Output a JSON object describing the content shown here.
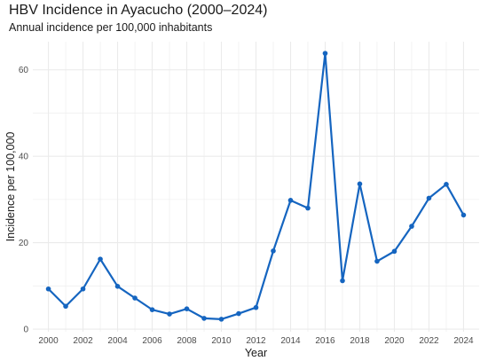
{
  "chart_data": {
    "type": "line",
    "title": "HBV Incidence in Ayacucho (2000–2024)",
    "subtitle": "Annual incidence per 100,000 inhabitants",
    "xlabel": "Year",
    "ylabel": "Incidence per 100,000",
    "x": [
      2000,
      2001,
      2002,
      2003,
      2004,
      2005,
      2006,
      2007,
      2008,
      2009,
      2010,
      2011,
      2012,
      2013,
      2014,
      2015,
      2016,
      2017,
      2018,
      2019,
      2020,
      2021,
      2022,
      2023,
      2024
    ],
    "y": [
      9.3,
      5.3,
      9.3,
      16.2,
      9.9,
      7.2,
      4.5,
      3.5,
      4.7,
      2.5,
      2.3,
      3.6,
      5.0,
      18.1,
      29.8,
      28.0,
      63.8,
      11.2,
      33.6,
      15.7,
      18.0,
      23.8,
      30.3,
      33.5,
      26.4
    ],
    "xlim": [
      1999.1,
      2024.9
    ],
    "ylim": [
      -0.6,
      66.5
    ],
    "xticks": [
      "2000",
      "2002",
      "2004",
      "2006",
      "2008",
      "2010",
      "2012",
      "2014",
      "2016",
      "2018",
      "2020",
      "2022",
      "2024"
    ],
    "xtick_values": [
      2000,
      2002,
      2004,
      2006,
      2008,
      2010,
      2012,
      2014,
      2016,
      2018,
      2020,
      2022,
      2024
    ],
    "yticks": [
      "0",
      "20",
      "40",
      "60"
    ],
    "ytick_values": [
      0,
      20,
      40,
      60
    ],
    "grid": true,
    "line_color": "#1565c0",
    "grid_color": "#ebebeb"
  }
}
